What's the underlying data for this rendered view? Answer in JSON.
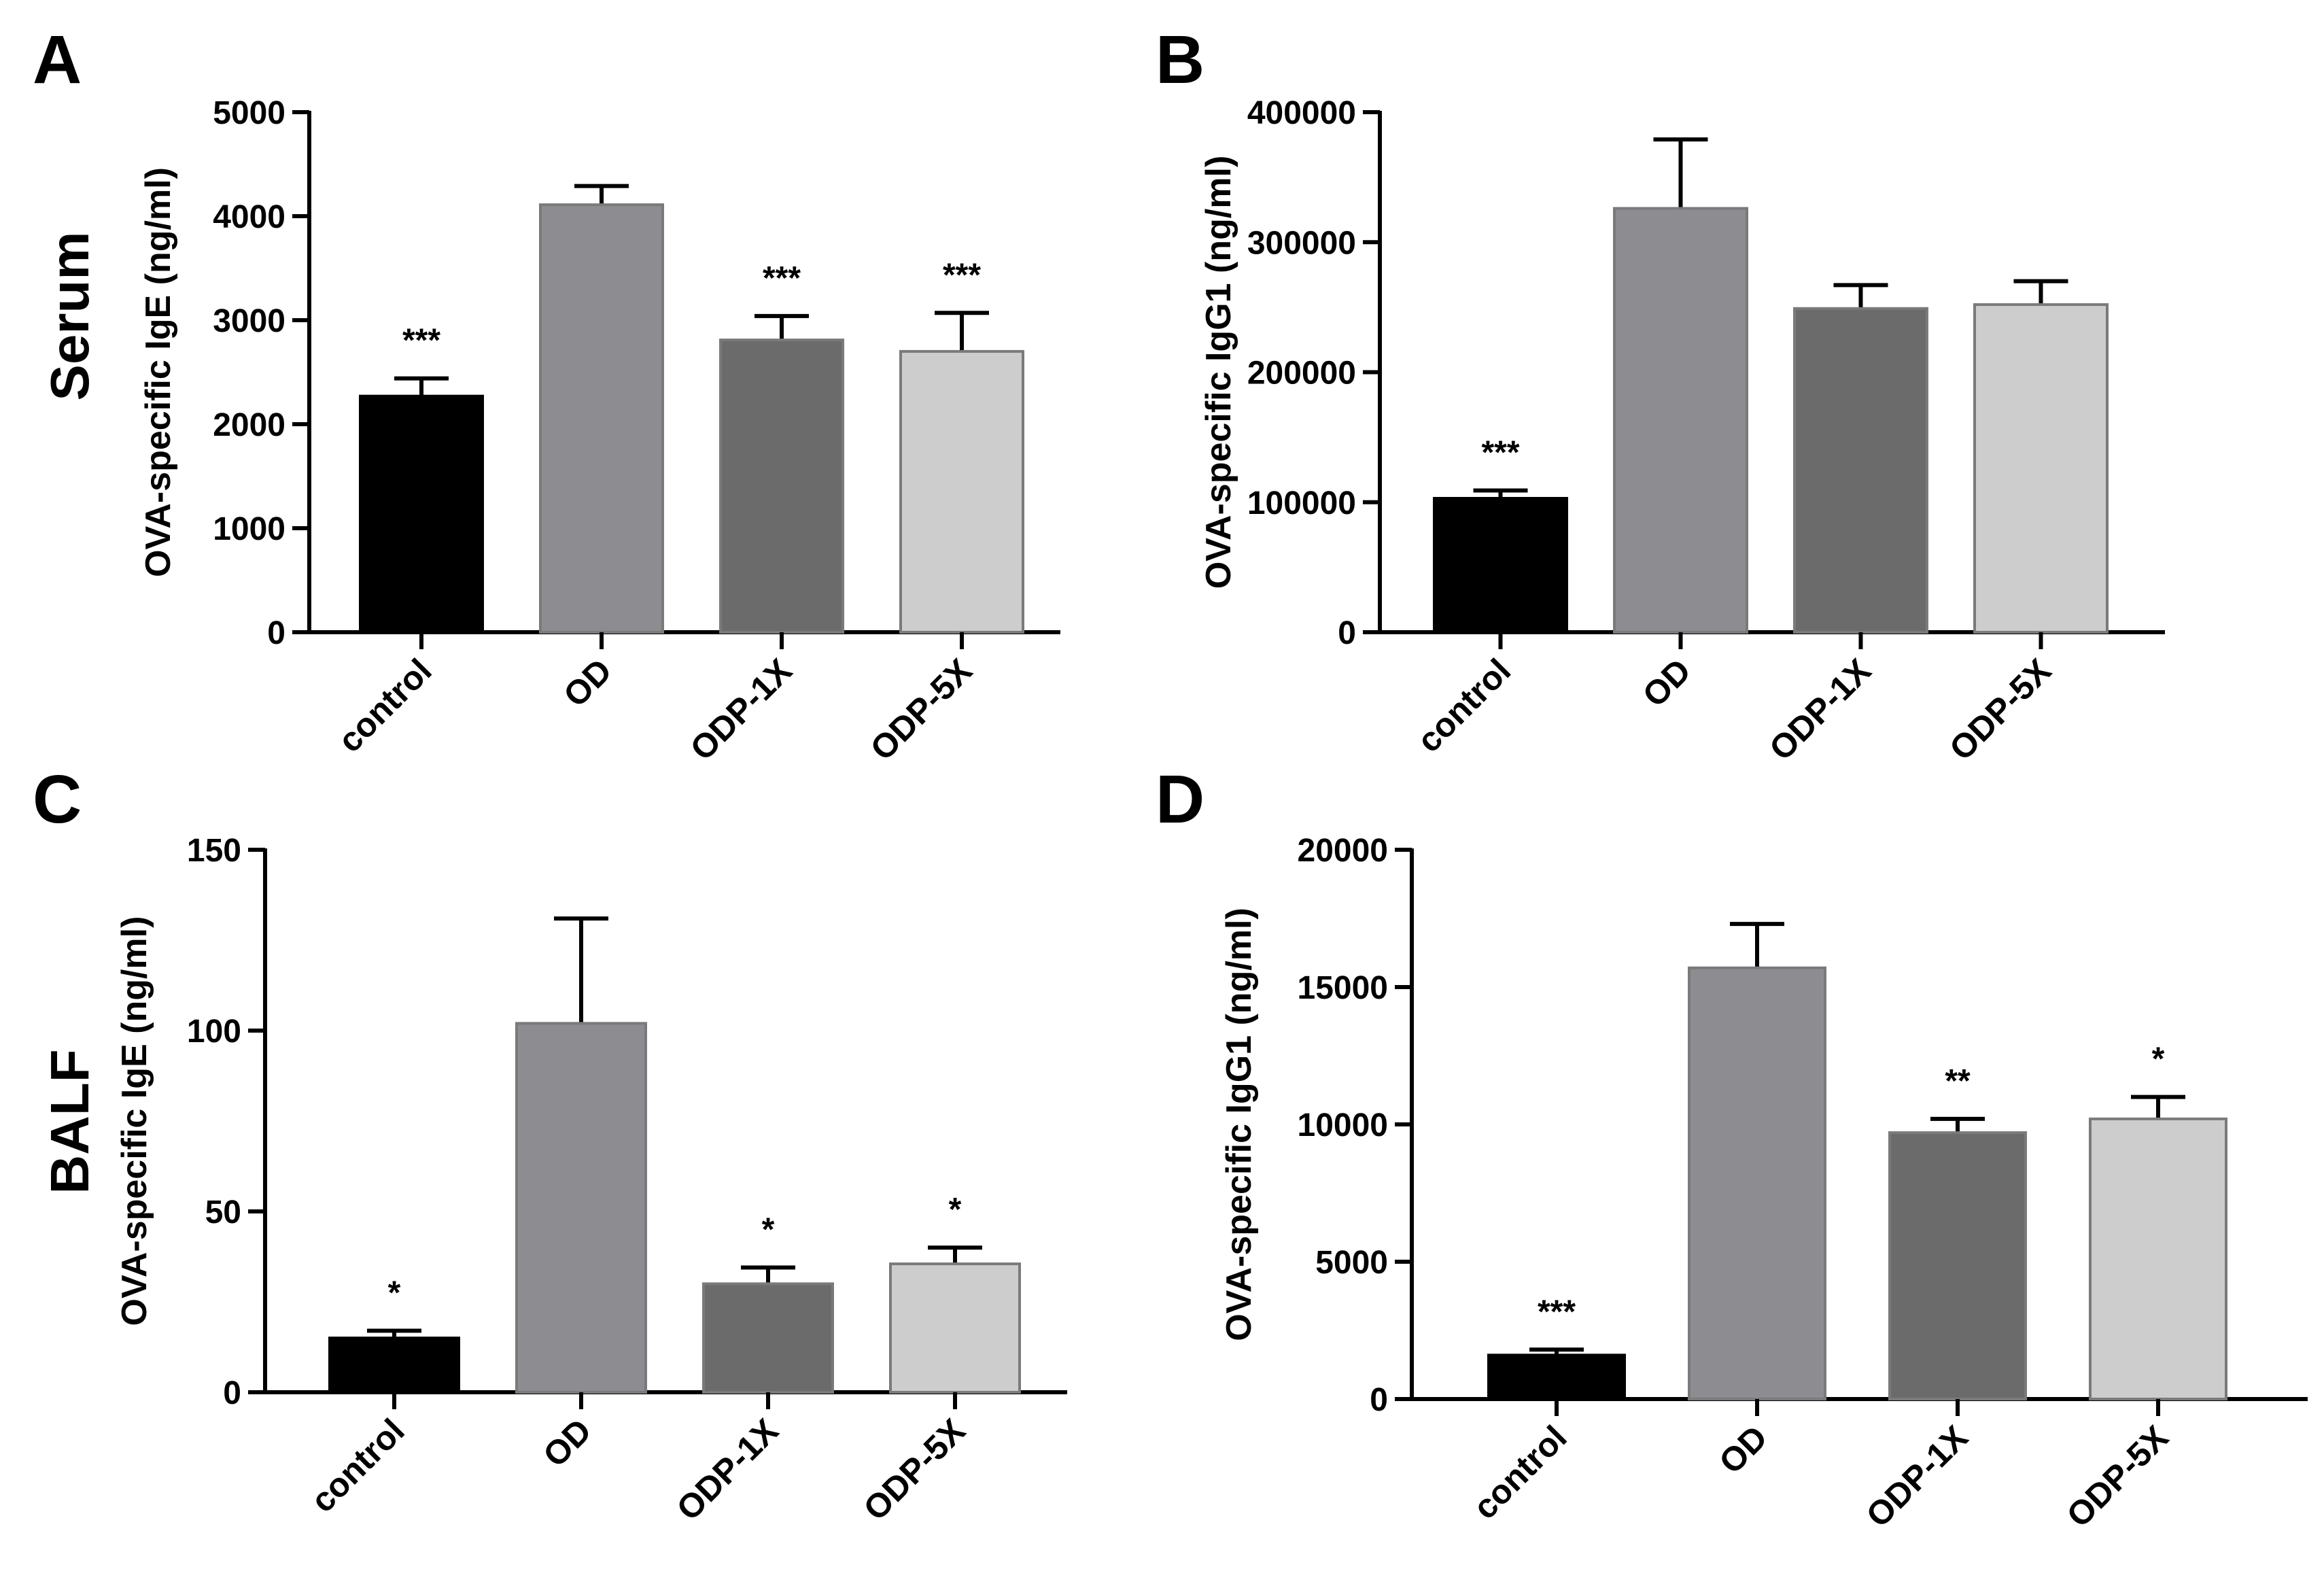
{
  "row_labels": {
    "top": "Serum",
    "bottom": "BALF"
  },
  "chart_data": [
    {
      "panel": "A",
      "type": "bar",
      "categories": [
        "control",
        "OD",
        "ODP-1X",
        "ODP-5X"
      ],
      "values": [
        2270,
        4110,
        2810,
        2700
      ],
      "errors": [
        170,
        180,
        230,
        370
      ],
      "significance": [
        "***",
        "",
        "***",
        "***"
      ],
      "colors": [
        "#000000",
        "#8d8c91",
        "#6b6b6b",
        "#cdcdcd"
      ],
      "ylabel": "OVA-specific IgE (ng/ml)",
      "ylim": [
        0,
        5000
      ],
      "yticks": [
        0,
        1000,
        2000,
        3000,
        4000,
        5000
      ],
      "tick_labels": [
        "0",
        "1000",
        "2000",
        "3000",
        "4000",
        "5000"
      ]
    },
    {
      "panel": "B",
      "type": "bar",
      "categories": [
        "control",
        "OD",
        "ODP-1X",
        "ODP-5X"
      ],
      "values": [
        103000,
        326000,
        249000,
        252000
      ],
      "errors": [
        6000,
        53000,
        18000,
        18000
      ],
      "significance": [
        "***",
        "",
        "",
        ""
      ],
      "colors": [
        "#000000",
        "#8d8c91",
        "#6b6b6b",
        "#cdcdcd"
      ],
      "ylabel": "OVA-specific IgG1 (ng/ml)",
      "ylim": [
        0,
        400000
      ],
      "yticks": [
        0,
        100000,
        200000,
        300000,
        400000
      ],
      "tick_labels": [
        "0",
        "100000",
        "200000",
        "300000",
        "400000"
      ]
    },
    {
      "panel": "C",
      "type": "bar",
      "categories": [
        "control",
        "OD",
        "ODP-1X",
        "ODP-5X"
      ],
      "values": [
        15,
        102,
        30,
        35.5
      ],
      "errors": [
        2,
        29,
        4.5,
        4.5
      ],
      "significance": [
        "*",
        "",
        "*",
        "*"
      ],
      "colors": [
        "#000000",
        "#8d8c91",
        "#6b6b6b",
        "#cdcdcd"
      ],
      "ylabel": "OVA-specific IgE (ng/ml)",
      "ylim": [
        0,
        150
      ],
      "yticks": [
        0,
        50,
        100,
        150
      ],
      "tick_labels": [
        "0",
        "50",
        "100",
        "150"
      ]
    },
    {
      "panel": "D",
      "type": "bar",
      "categories": [
        "control",
        "OD",
        "ODP-1X",
        "ODP-5X"
      ],
      "values": [
        1600,
        15700,
        9700,
        10200
      ],
      "errors": [
        200,
        1600,
        500,
        800
      ],
      "significance": [
        "***",
        "",
        "**",
        "*"
      ],
      "colors": [
        "#000000",
        "#8d8c91",
        "#6b6b6b",
        "#cdcdcd"
      ],
      "ylabel": "OVA-specific IgG1 (ng/ml)",
      "ylim": [
        0,
        20000
      ],
      "yticks": [
        0,
        5000,
        10000,
        15000,
        20000
      ],
      "tick_labels": [
        "0",
        "5000",
        "10000",
        "15000",
        "20000"
      ]
    }
  ]
}
